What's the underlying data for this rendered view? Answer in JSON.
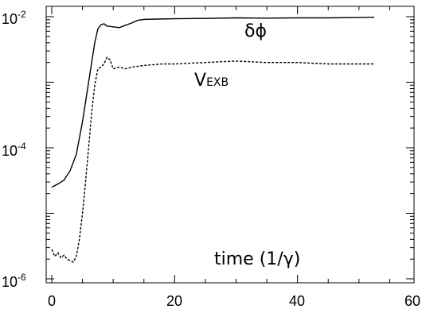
{
  "chart_data": {
    "type": "line",
    "title": "",
    "xlabel": "time (1/γ)",
    "ylabel": "",
    "xlim": [
      0,
      60
    ],
    "ylim": [
      1e-06,
      0.01
    ],
    "yscale": "log",
    "x_ticks": [
      "0",
      "20",
      "40",
      "60"
    ],
    "y_ticks": [
      {
        "base": "10",
        "exp": "-2"
      },
      {
        "base": "10",
        "exp": "-4"
      },
      {
        "base": "10",
        "exp": "-6"
      }
    ],
    "grid": false,
    "legend": "none",
    "annotations": {
      "dphi": "δϕ",
      "vexb_main": "V",
      "vexb_sub": "EXB"
    },
    "series": [
      {
        "style": "solid",
        "color": "#000000",
        "x": [
          0,
          1,
          2,
          3,
          4,
          5,
          6,
          7,
          7.5,
          8,
          8.5,
          9,
          10,
          11,
          12,
          13,
          14,
          15,
          17,
          20,
          25,
          30,
          35,
          40,
          45,
          50,
          52.5
        ],
        "y": [
          2.5e-05,
          2.8e-05,
          3.2e-05,
          4.5e-05,
          8e-05,
          0.00025,
          0.001,
          0.004,
          0.0065,
          0.0075,
          0.0078,
          0.0072,
          0.007,
          0.0068,
          0.0074,
          0.008,
          0.0088,
          0.0091,
          0.0092,
          0.0093,
          0.0094,
          0.0096,
          0.0095,
          0.0096,
          0.0096,
          0.0097,
          0.0098
        ]
      },
      {
        "style": "dashed",
        "color": "#000000",
        "x": [
          0,
          0.5,
          1,
          1.5,
          2,
          2.5,
          3,
          3.5,
          4,
          4.5,
          5,
          5.5,
          6,
          6.5,
          7,
          7.5,
          8,
          8.5,
          9,
          9.5,
          10,
          11,
          12,
          13,
          15,
          18,
          20,
          25,
          30,
          35,
          40,
          45,
          50,
          52.5
        ],
        "y": [
          2.8e-06,
          2.2e-06,
          2.5e-06,
          2.1e-06,
          2.3e-06,
          2e-06,
          1.9e-06,
          1.8e-06,
          2.2e-06,
          4e-06,
          1e-05,
          3e-05,
          0.0001,
          0.00035,
          0.0009,
          0.0016,
          0.0017,
          0.0019,
          0.0024,
          0.0022,
          0.0016,
          0.0017,
          0.0016,
          0.0017,
          0.0018,
          0.0019,
          0.0019,
          0.002,
          0.0021,
          0.002,
          0.002,
          0.0019,
          0.0019,
          0.0019
        ]
      }
    ]
  }
}
